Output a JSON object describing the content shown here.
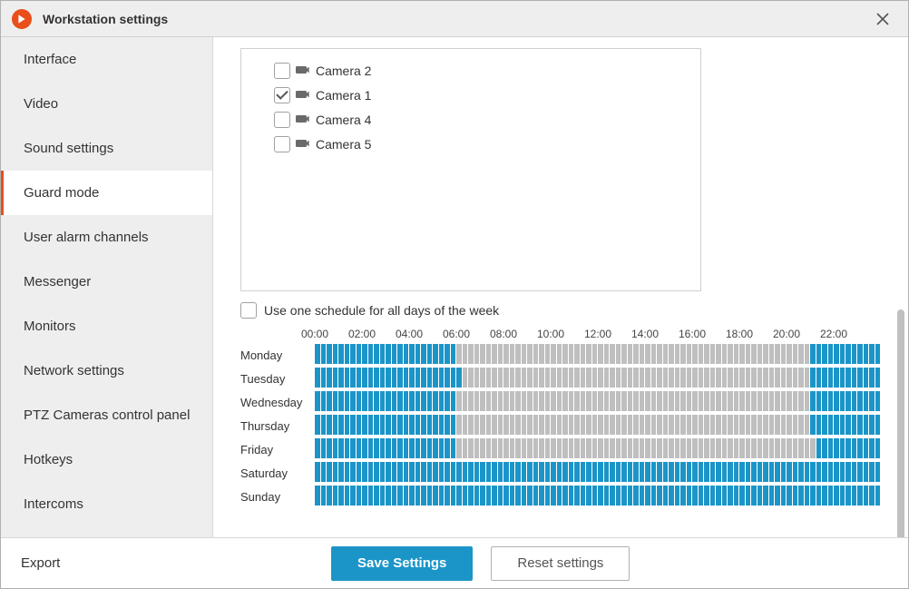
{
  "window": {
    "title": "Workstation settings"
  },
  "sidebar": {
    "items": [
      {
        "label": "Interface",
        "active": false
      },
      {
        "label": "Video",
        "active": false
      },
      {
        "label": "Sound settings",
        "active": false
      },
      {
        "label": "Guard mode",
        "active": true
      },
      {
        "label": "User alarm channels",
        "active": false
      },
      {
        "label": "Messenger",
        "active": false
      },
      {
        "label": "Monitors",
        "active": false
      },
      {
        "label": "Network settings",
        "active": false
      },
      {
        "label": "PTZ Cameras control panel",
        "active": false
      },
      {
        "label": "Hotkeys",
        "active": false
      },
      {
        "label": "Intercoms",
        "active": false
      }
    ]
  },
  "cameras": [
    {
      "label": "Camera 2",
      "checked": false
    },
    {
      "label": "Camera 1",
      "checked": true
    },
    {
      "label": "Camera 4",
      "checked": false
    },
    {
      "label": "Camera 5",
      "checked": false
    }
  ],
  "one_schedule": {
    "label": "Use one schedule for all days of the week",
    "checked": false
  },
  "schedule": {
    "segments_per_hour": 4,
    "hours_labels": [
      "00:00",
      "02:00",
      "04:00",
      "06:00",
      "08:00",
      "10:00",
      "12:00",
      "14:00",
      "16:00",
      "18:00",
      "20:00",
      "22:00"
    ],
    "days": [
      {
        "name": "Monday",
        "on_ranges": [
          [
            0,
            24
          ],
          [
            84,
            96
          ]
        ]
      },
      {
        "name": "Tuesday",
        "on_ranges": [
          [
            0,
            25
          ],
          [
            84,
            96
          ]
        ]
      },
      {
        "name": "Wednesday",
        "on_ranges": [
          [
            0,
            24
          ],
          [
            84,
            96
          ]
        ]
      },
      {
        "name": "Thursday",
        "on_ranges": [
          [
            0,
            24
          ],
          [
            84,
            96
          ]
        ]
      },
      {
        "name": "Friday",
        "on_ranges": [
          [
            0,
            24
          ],
          [
            85,
            96
          ]
        ]
      },
      {
        "name": "Saturday",
        "on_ranges": [
          [
            0,
            96
          ]
        ]
      },
      {
        "name": "Sunday",
        "on_ranges": [
          [
            0,
            96
          ]
        ]
      }
    ],
    "colors": {
      "on": "#1b95c8",
      "off": "#bfbfbf"
    }
  },
  "footer": {
    "export_label": "Export",
    "save_label": "Save Settings",
    "reset_label": "Reset settings"
  },
  "colors": {
    "accent": "#e94e1b",
    "primary": "#1b95c8",
    "sidebar_bg": "#eeeeee",
    "border": "#d0d0d0"
  }
}
